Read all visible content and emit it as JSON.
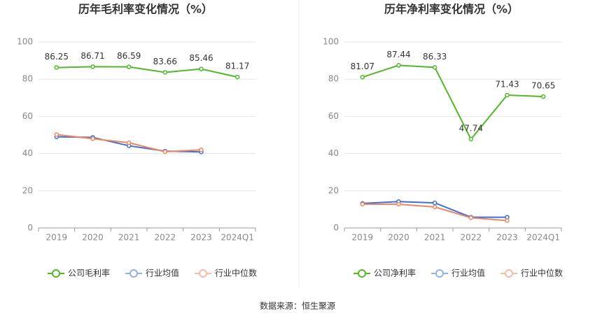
{
  "chart_data": [
    {
      "type": "line",
      "title": "历年毛利率变化情况（%）",
      "categories": [
        "2019",
        "2020",
        "2021",
        "2022",
        "2023",
        "2024Q1"
      ],
      "series": [
        {
          "name": "公司毛利率",
          "color": "#52b82a",
          "values": [
            86.25,
            86.71,
            86.59,
            83.66,
            85.46,
            81.17
          ],
          "show_labels": true
        },
        {
          "name": "行业均值",
          "color": "#3d6fd6",
          "values": [
            49.0,
            48.7,
            44.2,
            41.3,
            40.9,
            null
          ],
          "show_labels": false
        },
        {
          "name": "行业中位数",
          "color": "#ee8663",
          "values": [
            50.2,
            48.0,
            45.8,
            41.0,
            42.0,
            null
          ],
          "show_labels": false
        }
      ],
      "ylim": [
        0,
        100
      ],
      "yticks": [
        0,
        20,
        40,
        60,
        80,
        100
      ],
      "grid": true,
      "legend": "bottom"
    },
    {
      "type": "line",
      "title": "历年净利率变化情况（%）",
      "categories": [
        "2019",
        "2020",
        "2021",
        "2022",
        "2023",
        "2024Q1"
      ],
      "series": [
        {
          "name": "公司净利率",
          "color": "#52b82a",
          "values": [
            81.07,
            87.44,
            86.33,
            47.74,
            71.43,
            70.65
          ],
          "show_labels": true
        },
        {
          "name": "行业均值",
          "color": "#3d6fd6",
          "values": [
            13.2,
            14.2,
            13.5,
            5.8,
            5.8,
            null
          ],
          "show_labels": false
        },
        {
          "name": "行业中位数",
          "color": "#ee8663",
          "values": [
            12.8,
            12.8,
            11.3,
            5.5,
            4.0,
            null
          ],
          "show_labels": false
        }
      ],
      "ylim": [
        0,
        100
      ],
      "yticks": [
        0,
        20,
        40,
        60,
        80,
        100
      ],
      "grid": true,
      "legend": "bottom"
    }
  ],
  "source": "数据来源：恒生聚源"
}
